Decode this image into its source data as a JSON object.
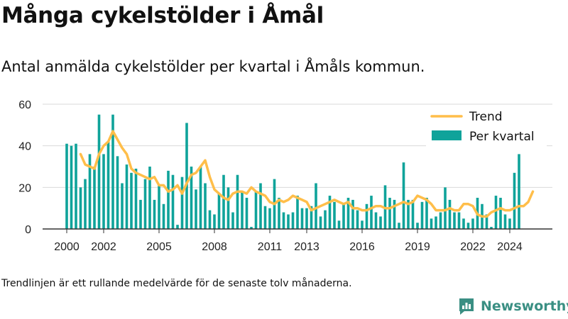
{
  "title": "Många cykelstölder i Åmål",
  "subtitle": "Antal anmälda cykelstölder per kvartal i Åmåls kommun.",
  "footnote": "Trendlinjen är ett rullande medelvärde för de senaste tolv månaderna.",
  "brand": {
    "name": "Newsworthy",
    "color": "#3a8f83"
  },
  "chart_data": {
    "type": "bar",
    "x_tick_labels": [
      "2000",
      "2002",
      "2005",
      "2008",
      "2011",
      "2013",
      "2016",
      "2019",
      "2022",
      "2024"
    ],
    "y_ticks": [
      0,
      20,
      40,
      60
    ],
    "ylim": [
      0,
      60
    ],
    "grid": true,
    "legend_position": "top-right",
    "colors": {
      "bars": "#0fa39a",
      "trend": "#ffbe4a",
      "axis": "#333333",
      "grid": "#d9d9d9"
    },
    "series": [
      {
        "name": "Per kvartal",
        "type": "bar",
        "start_year": 2000,
        "values": [
          41,
          40,
          41,
          20,
          24,
          36,
          30,
          55,
          36,
          42,
          55,
          35,
          22,
          31,
          27,
          29,
          14,
          24,
          30,
          14,
          21,
          12,
          28,
          26,
          2,
          25,
          51,
          30,
          19,
          30,
          22,
          9,
          7,
          17,
          26,
          20,
          8,
          26,
          18,
          15,
          1,
          18,
          22,
          11,
          10,
          24,
          15,
          8,
          7,
          8,
          16,
          10,
          10,
          11,
          22,
          6,
          9,
          16,
          13,
          4,
          12,
          15,
          14,
          9,
          4,
          12,
          16,
          8,
          6,
          21,
          15,
          14,
          3,
          32,
          14,
          14,
          3,
          13,
          15,
          5,
          6,
          8,
          20,
          14,
          8,
          8,
          5,
          3,
          5,
          15,
          12,
          7,
          1,
          16,
          15,
          7,
          5,
          27,
          36
        ]
      },
      {
        "name": "Trend",
        "type": "line",
        "values": [
          36,
          31,
          30,
          29,
          36,
          40,
          42,
          47,
          43,
          39,
          36,
          29,
          27,
          26,
          25,
          24,
          25,
          21,
          21,
          18,
          19,
          21,
          17,
          22,
          26,
          27,
          30,
          33,
          25,
          19,
          17,
          15,
          14,
          17,
          18,
          18,
          17,
          20,
          18,
          17,
          16,
          13,
          12,
          14,
          13,
          14,
          16,
          15,
          14,
          13,
          9,
          10,
          11,
          12,
          13,
          14,
          13,
          12,
          13,
          10,
          10,
          9,
          9,
          10,
          11,
          11,
          10,
          10,
          11,
          12,
          13,
          12,
          13,
          16,
          15,
          14,
          12,
          9,
          9,
          9,
          10,
          9,
          9,
          12,
          12,
          11,
          7,
          6,
          6,
          8,
          9,
          10,
          9,
          9,
          10,
          11,
          11,
          13,
          18
        ]
      }
    ]
  }
}
